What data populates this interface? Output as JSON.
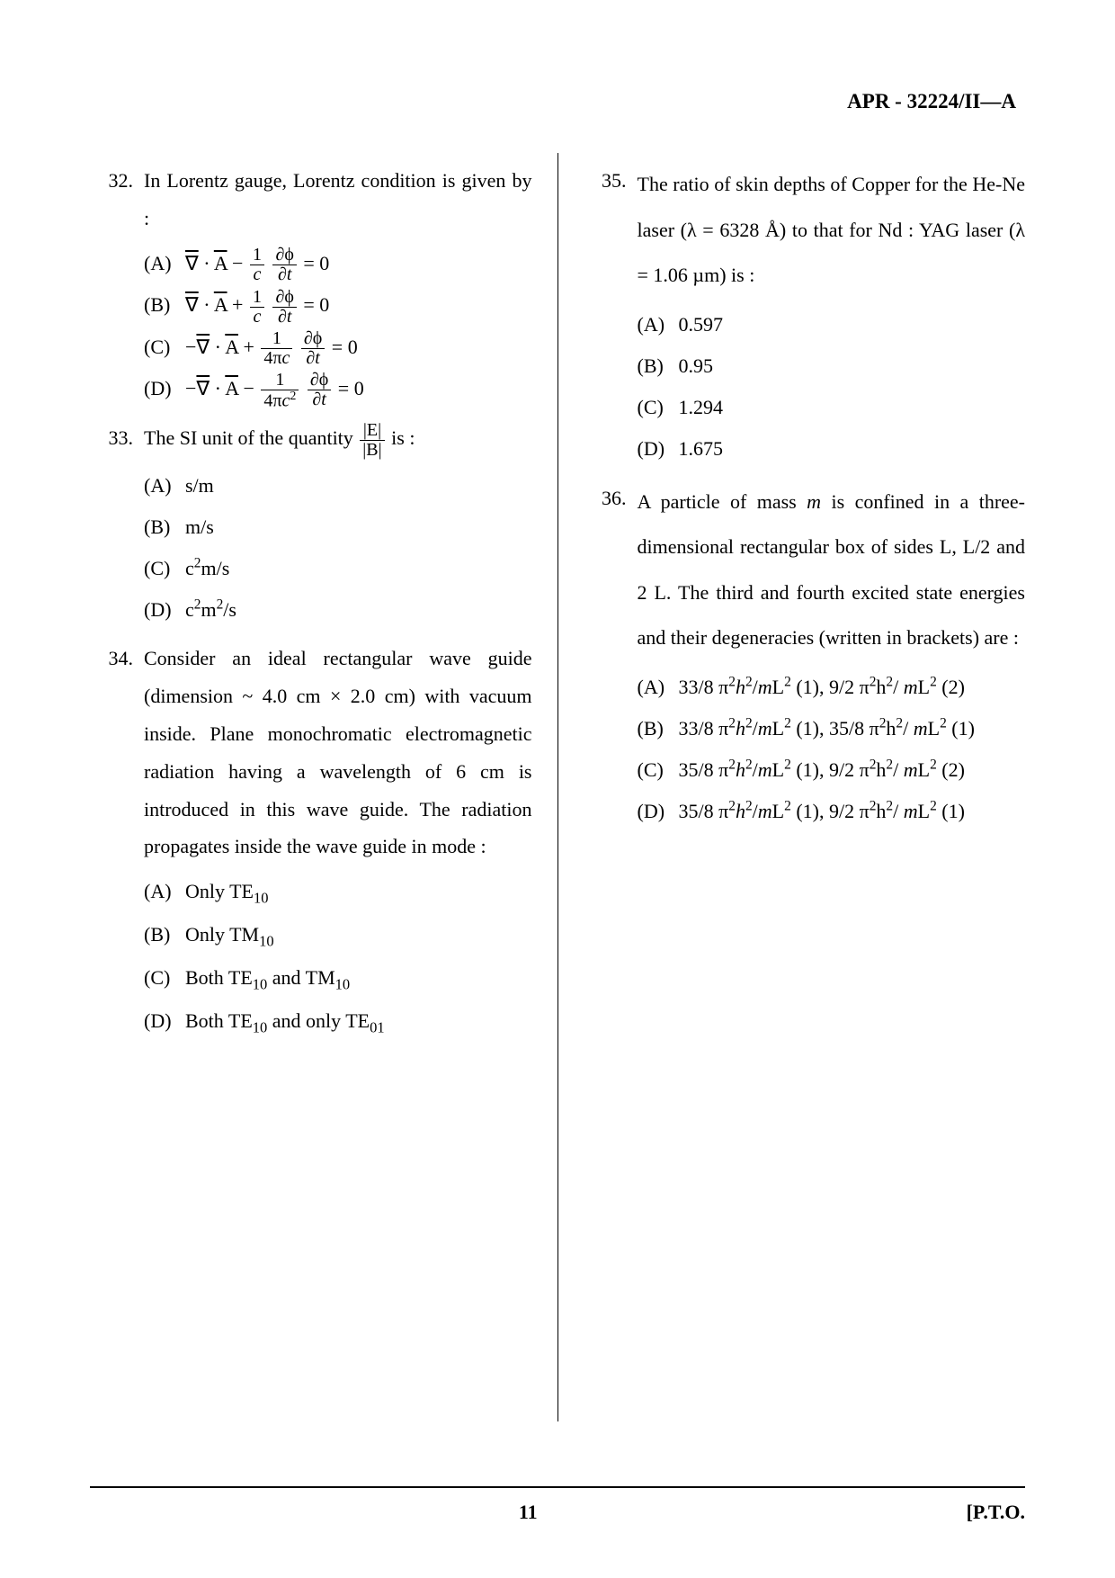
{
  "header": "APR - 32224/II—A",
  "footer_page": "11",
  "footer_pto": "[P.T.O.",
  "col_left": {
    "q32": {
      "num": "32.",
      "text": "In Lorentz gauge, Lorentz condition is given by :",
      "A_html": "<span class='ov'>∇</span> · <span class='ov'>A</span> − <span class='frac'><span class='num'>1</span><span class='den'><i>c</i></span></span> <span class='frac'><span class='num'>∂ϕ</span><span class='den'>∂<i>t</i></span></span> = 0",
      "B_html": "<span class='ov'>∇</span> · <span class='ov'>A</span>  +  <span class='frac'><span class='num'>1</span><span class='den'><i>c</i></span></span> <span class='frac'><span class='num'>∂ϕ</span><span class='den'>∂<i>t</i></span></span> = 0",
      "C_html": "−<span class='ov'>∇</span> · <span class='ov'>A</span>  +  <span class='frac'><span class='num'>1</span><span class='den'>4π<i>c</i></span></span>  <span class='frac'><span class='num'>∂ϕ</span><span class='den'>∂<i>t</i></span></span> = 0",
      "D_html": "−<span class='ov'>∇</span> · <span class='ov'>A</span>  −  <span class='frac'><span class='num'>1</span><span class='den'>4π<i>c</i><sup>2</sup></span></span>  <span class='frac'><span class='num'>∂ϕ</span><span class='den'>∂<i>t</i></span></span> = 0"
    },
    "q33": {
      "num": "33.",
      "text_html": "The SI unit of the quantity  <span class='frac'><span class='num'>|E|</span><span class='den'>|B|</span></span>  is :",
      "A": "s/m",
      "B": "m/s",
      "C_html": "c<sup>2</sup>m/s",
      "D_html": "c<sup>2</sup>m<sup>2</sup>/s"
    },
    "q34": {
      "num": "34.",
      "text": "Consider an ideal rectangular wave guide (dimension ~ 4.0 cm × 2.0 cm) with vacuum inside. Plane monochromatic electromagnetic radiation having a wavelength of 6 cm is introduced in this wave guide. The radiation propagates inside the wave guide in mode :",
      "A_html": "Only  TE<sub>10</sub>",
      "B_html": "Only  TM<sub>10</sub>",
      "C_html": "Both  TE<sub>10</sub>  and  TM<sub>10</sub>",
      "D_html": "Both  TE<sub>10</sub>  and only  TE<sub>01</sub>"
    }
  },
  "col_right": {
    "q35": {
      "num": "35.",
      "text": "The ratio of skin depths of Copper for the He-Ne laser (λ = 6328 Å) to that for Nd : YAG laser (λ = 1.06 µm) is :",
      "A": "0.597",
      "B": "0.95",
      "C": "1.294",
      "D": "1.675"
    },
    "q36": {
      "num": "36.",
      "text_html": "A particle of mass <i>m</i> is confined in a three-dimensional rectangular box of sides L, L/2 and 2 L. The third and fourth excited state energies and their degeneracies (written in brackets) are :",
      "A_html": "33/8  π<sup>2</sup><i>h</i><sup>2</sup>/<i>m</i>L<sup>2</sup> (1), 9/2 π<sup>2</sup>h<sup>2</sup>/ <i>m</i>L<sup>2</sup> (2)",
      "B_html": "33/8  π<sup>2</sup><i>h</i><sup>2</sup>/<i>m</i>L<sup>2</sup> (1), 35/8 π<sup>2</sup>h<sup>2</sup>/ <i>m</i>L<sup>2</sup> (1)",
      "C_html": "35/8  π<sup>2</sup><i>h</i><sup>2</sup>/<i>m</i>L<sup>2</sup> (1), 9/2 π<sup>2</sup>h<sup>2</sup>/ <i>m</i>L<sup>2</sup> (2)",
      "D_html": "35/8  π<sup>2</sup><i>h</i><sup>2</sup>/<i>m</i>L<sup>2</sup> (1), 9/2 π<sup>2</sup>h<sup>2</sup>/ <i>m</i>L<sup>2</sup> (1)"
    }
  }
}
